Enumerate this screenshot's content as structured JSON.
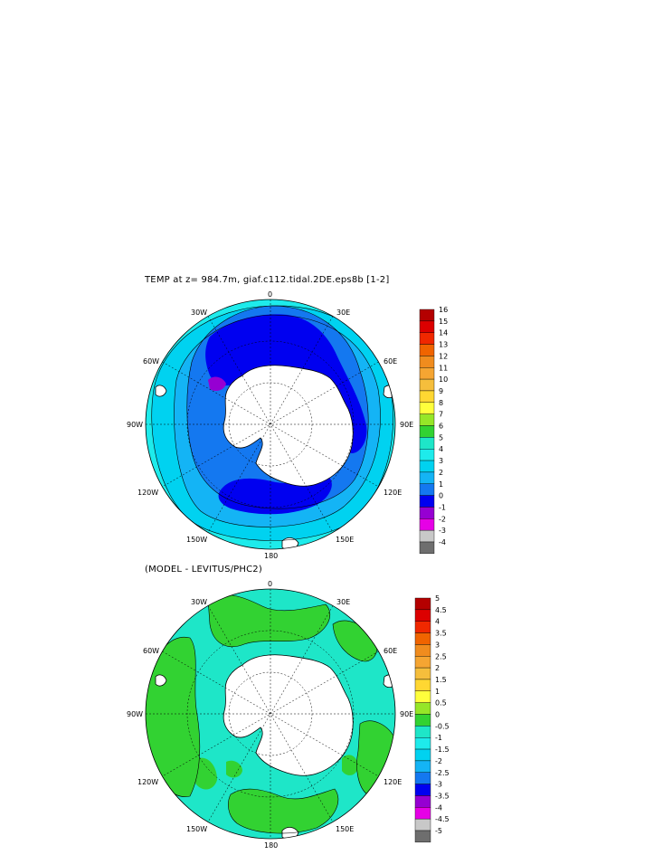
{
  "panel_top": {
    "title": "TEMP at z= 984.7m, giaf.c112.tidal.2DE.eps8b [1-2]",
    "lon_labels": [
      "0",
      "30E",
      "60E",
      "90E",
      "120E",
      "150E",
      "180",
      "150W",
      "120W",
      "90W",
      "60W",
      "30W"
    ],
    "colorbar": {
      "labels": [
        "16",
        "15",
        "14",
        "13",
        "12",
        "11",
        "10",
        "9",
        "8",
        "7",
        "6",
        "5",
        "4",
        "3",
        "2",
        "1",
        "0",
        "-1",
        "-2",
        "-3",
        "-4"
      ],
      "colors": [
        "#b40000",
        "#dc0000",
        "#f02800",
        "#f06400",
        "#f08c1e",
        "#f5a532",
        "#f5be3c",
        "#ffd732",
        "#ffff3c",
        "#96e628",
        "#32d232",
        "#1ee6c8",
        "#1eebeb",
        "#00d2f0",
        "#14b4f5",
        "#1478f0",
        "#0000f0",
        "#9600d2",
        "#e600e6",
        "#c8c8c8",
        "#6e6e6e"
      ]
    }
  },
  "panel_bottom": {
    "title": "(MODEL - LEVITUS/PHC2)",
    "lon_labels": [
      "0",
      "30E",
      "60E",
      "90E",
      "120E",
      "150E",
      "180",
      "150W",
      "120W",
      "90W",
      "60W",
      "30W"
    ],
    "colorbar": {
      "labels": [
        "5",
        "4.5",
        "4",
        "3.5",
        "3",
        "2.5",
        "2",
        "1.5",
        "1",
        "0.5",
        "0",
        "-0.5",
        "-1",
        "-1.5",
        "-2",
        "-2.5",
        "-3",
        "-3.5",
        "-4",
        "-4.5",
        "-5"
      ],
      "colors": [
        "#b40000",
        "#dc0000",
        "#f02800",
        "#f06400",
        "#f08c1e",
        "#f5a532",
        "#f5be3c",
        "#ffd732",
        "#ffff3c",
        "#96e628",
        "#32d232",
        "#1ee6c8",
        "#1eebeb",
        "#00d2f0",
        "#14b4f5",
        "#1478f0",
        "#0000f0",
        "#9600d2",
        "#e600e6",
        "#c8c8c8",
        "#6e6e6e"
      ]
    }
  },
  "map_colors": {
    "land": "#ffffff",
    "top_outer": "#1eebeb",
    "top_mid": "#00d2f0",
    "top_band": "#14b4f5",
    "top_inner": "#1478f0",
    "top_core": "#0000f0",
    "top_cold": "#9600d2",
    "bot_base": "#1ee6c8",
    "bot_patch": "#32d232",
    "bot_light": "#1eebeb"
  }
}
